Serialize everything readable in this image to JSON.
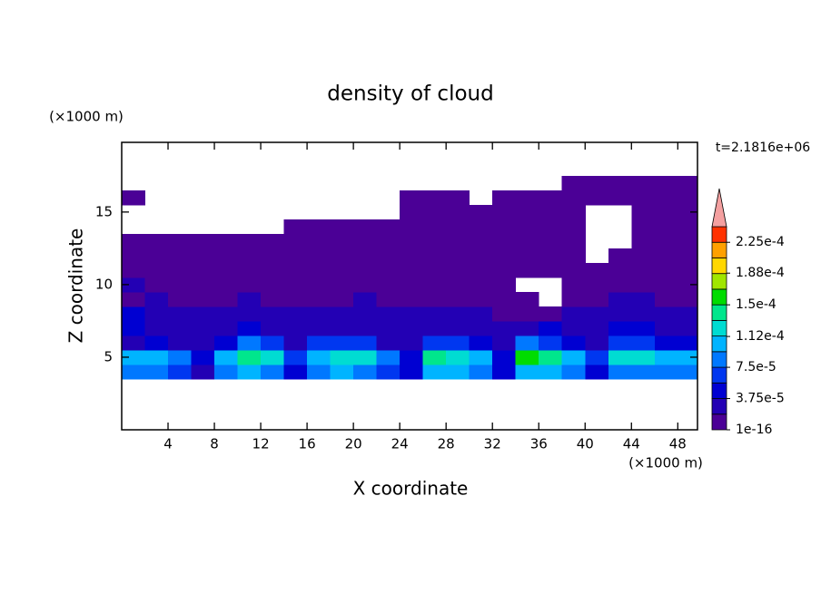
{
  "chart_data": {
    "type": "contour",
    "title": "density of cloud",
    "x_label": "X coordinate",
    "y_label": "Z coordinate",
    "x_unit": "(×1000 m)",
    "y_unit": "(×1000 m)",
    "time_label": "t=2.1816e+06",
    "xlim": [
      0,
      49.7
    ],
    "ylim": [
      0,
      19.8
    ],
    "xticks": [
      4,
      8,
      12,
      16,
      20,
      24,
      28,
      32,
      36,
      40,
      44,
      48
    ],
    "yticks": [
      5,
      10,
      15
    ],
    "x": [
      1,
      3,
      5,
      7,
      9,
      11,
      13,
      15,
      17,
      19,
      21,
      23,
      25,
      27,
      29,
      31,
      33,
      35,
      37,
      39,
      41,
      43,
      45,
      47,
      49
    ],
    "y": [
      4,
      5,
      6,
      7,
      8,
      9,
      10,
      11,
      12,
      13,
      14,
      15,
      16,
      17
    ],
    "z": [
      [
        8e-05,
        9e-05,
        7e-05,
        3e-05,
        9e-05,
        0.0001,
        9e-05,
        5e-05,
        9e-05,
        0.0001,
        9e-05,
        7e-05,
        4e-05,
        0.0001,
        0.0001,
        8e-05,
        4e-05,
        0.0001,
        0.0001,
        8e-05,
        5e-05,
        9e-05,
        9e-05,
        9e-05,
        8e-05
      ],
      [
        0.0001,
        0.00011,
        9e-05,
        4e-05,
        0.00011,
        0.00014,
        0.00013,
        6e-05,
        0.00011,
        0.00013,
        0.00012,
        9e-05,
        5e-05,
        0.000135,
        0.00013,
        0.00011,
        5e-05,
        0.00015,
        0.00014,
        0.00011,
        6e-05,
        0.00012,
        0.00013,
        0.00011,
        0.0001
      ],
      [
        3e-05,
        4e-05,
        3e-05,
        2e-05,
        5e-05,
        8e-05,
        7e-05,
        3e-05,
        6e-05,
        7e-05,
        6e-05,
        3e-05,
        2.5e-05,
        7e-05,
        6e-05,
        4e-05,
        3e-05,
        8e-05,
        7e-05,
        5e-05,
        3e-05,
        6e-05,
        6e-05,
        5e-05,
        4e-05
      ],
      [
        4e-05,
        3e-05,
        2.5e-05,
        2e-05,
        3e-05,
        4e-05,
        3e-05,
        2.5e-05,
        3e-05,
        3e-05,
        3e-05,
        2.5e-05,
        2e-05,
        3e-05,
        3e-05,
        2.5e-05,
        2e-05,
        3.5e-05,
        4e-05,
        3e-05,
        2.5e-05,
        4e-05,
        4e-05,
        3e-05,
        3e-05
      ],
      [
        4e-05,
        3e-05,
        2e-05,
        2e-05,
        2e-05,
        2.5e-05,
        2e-05,
        2e-05,
        2e-05,
        2e-05,
        2.5e-05,
        2e-05,
        2e-05,
        2e-05,
        2e-05,
        2e-05,
        1.5e-05,
        1.5e-05,
        1e-05,
        2e-05,
        2e-05,
        3e-05,
        3e-05,
        2e-05,
        2e-05
      ],
      [
        1.5e-05,
        2e-05,
        1.5e-05,
        1.5e-05,
        1.5e-05,
        2e-05,
        1.5e-05,
        1.5e-05,
        1.5e-05,
        1.5e-05,
        2e-05,
        1.5e-05,
        1.5e-05,
        1.5e-05,
        1.5e-05,
        1e-05,
        1e-05,
        1e-05,
        null,
        1e-05,
        1.5e-05,
        2e-05,
        2e-05,
        1.5e-05,
        1.5e-05
      ],
      [
        2e-05,
        1.2e-05,
        1.2e-05,
        1.2e-05,
        1.2e-05,
        1.2e-05,
        1.2e-05,
        1.2e-05,
        1.2e-05,
        1.2e-05,
        1.2e-05,
        1.2e-05,
        1.2e-05,
        1.2e-05,
        1.2e-05,
        1.2e-05,
        1.2e-05,
        null,
        null,
        1e-05,
        1.2e-05,
        1.2e-05,
        1.2e-05,
        1.2e-05,
        1.2e-05
      ],
      [
        1e-05,
        1e-05,
        7e-06,
        1e-05,
        1e-05,
        1e-05,
        7e-06,
        1e-05,
        1e-05,
        1e-05,
        1e-05,
        7e-06,
        1e-05,
        1e-05,
        1e-05,
        1e-05,
        7e-06,
        7e-06,
        7e-06,
        1e-05,
        1e-05,
        1e-05,
        1e-05,
        1e-05,
        1e-05
      ],
      [
        8e-06,
        8e-06,
        8e-06,
        8e-06,
        8e-06,
        8e-06,
        8e-06,
        8e-06,
        8e-06,
        8e-06,
        8e-06,
        8e-06,
        8e-06,
        8e-06,
        8e-06,
        8e-06,
        8e-06,
        8e-06,
        8e-06,
        8e-06,
        null,
        8e-06,
        8e-06,
        8e-06,
        8e-06
      ],
      [
        6e-06,
        6e-06,
        6e-06,
        6e-06,
        6e-06,
        6e-06,
        6e-06,
        6e-06,
        6e-06,
        6e-06,
        6e-06,
        6e-06,
        6e-06,
        6e-06,
        6e-06,
        6e-06,
        6e-06,
        6e-06,
        6e-06,
        6e-06,
        null,
        null,
        6e-06,
        6e-06,
        6e-06
      ],
      [
        null,
        null,
        null,
        null,
        null,
        null,
        null,
        5e-06,
        5e-06,
        5e-06,
        5e-06,
        5e-06,
        5e-06,
        5e-06,
        5e-06,
        5e-06,
        5e-06,
        5e-06,
        5e-06,
        5e-06,
        null,
        null,
        5e-06,
        5e-06,
        5e-06
      ],
      [
        null,
        null,
        null,
        null,
        null,
        null,
        null,
        null,
        null,
        null,
        null,
        null,
        4e-06,
        4e-06,
        4e-06,
        4e-06,
        4e-06,
        4e-06,
        4e-06,
        4e-06,
        null,
        null,
        4e-06,
        4e-06,
        4e-06
      ],
      [
        3e-06,
        null,
        null,
        null,
        null,
        null,
        null,
        null,
        null,
        null,
        null,
        null,
        3e-06,
        3e-06,
        3e-06,
        null,
        3e-06,
        3e-06,
        3e-06,
        3e-06,
        3e-06,
        3e-06,
        3e-06,
        3e-06,
        3e-06
      ],
      [
        null,
        null,
        null,
        null,
        null,
        null,
        null,
        null,
        null,
        null,
        null,
        null,
        null,
        null,
        null,
        null,
        null,
        null,
        null,
        2e-06,
        2e-06,
        2e-06,
        2e-06,
        2e-06,
        2e-06
      ]
    ],
    "levels": [
      1e-16,
      1.875e-05,
      3.75e-05,
      5.625e-05,
      7.5e-05,
      9.375e-05,
      0.0001125,
      0.00013125,
      0.00015,
      0.00016875,
      0.0001875,
      0.00020625,
      0.000225,
      0.00024375
    ],
    "colors": [
      "#4b0096",
      "#2300b4",
      "#0000d2",
      "#0037f0",
      "#0078ff",
      "#00b4ff",
      "#00dcd2",
      "#00e68c",
      "#00dc00",
      "#a0e600",
      "#ffd700",
      "#ffa000",
      "#ff3200"
    ],
    "extend_color": "#f4a0a0",
    "colorbar_ticks": [
      {
        "value": 1e-16,
        "label": "1e-16"
      },
      {
        "value": 3.75e-05,
        "label": "3.75e-5"
      },
      {
        "value": 7.5e-05,
        "label": "7.5e-5"
      },
      {
        "value": 0.000112,
        "label": "1.12e-4"
      },
      {
        "value": 0.00015,
        "label": "1.5e-4"
      },
      {
        "value": 0.000188,
        "label": "1.88e-4"
      },
      {
        "value": 0.000225,
        "label": "2.25e-4"
      }
    ]
  }
}
